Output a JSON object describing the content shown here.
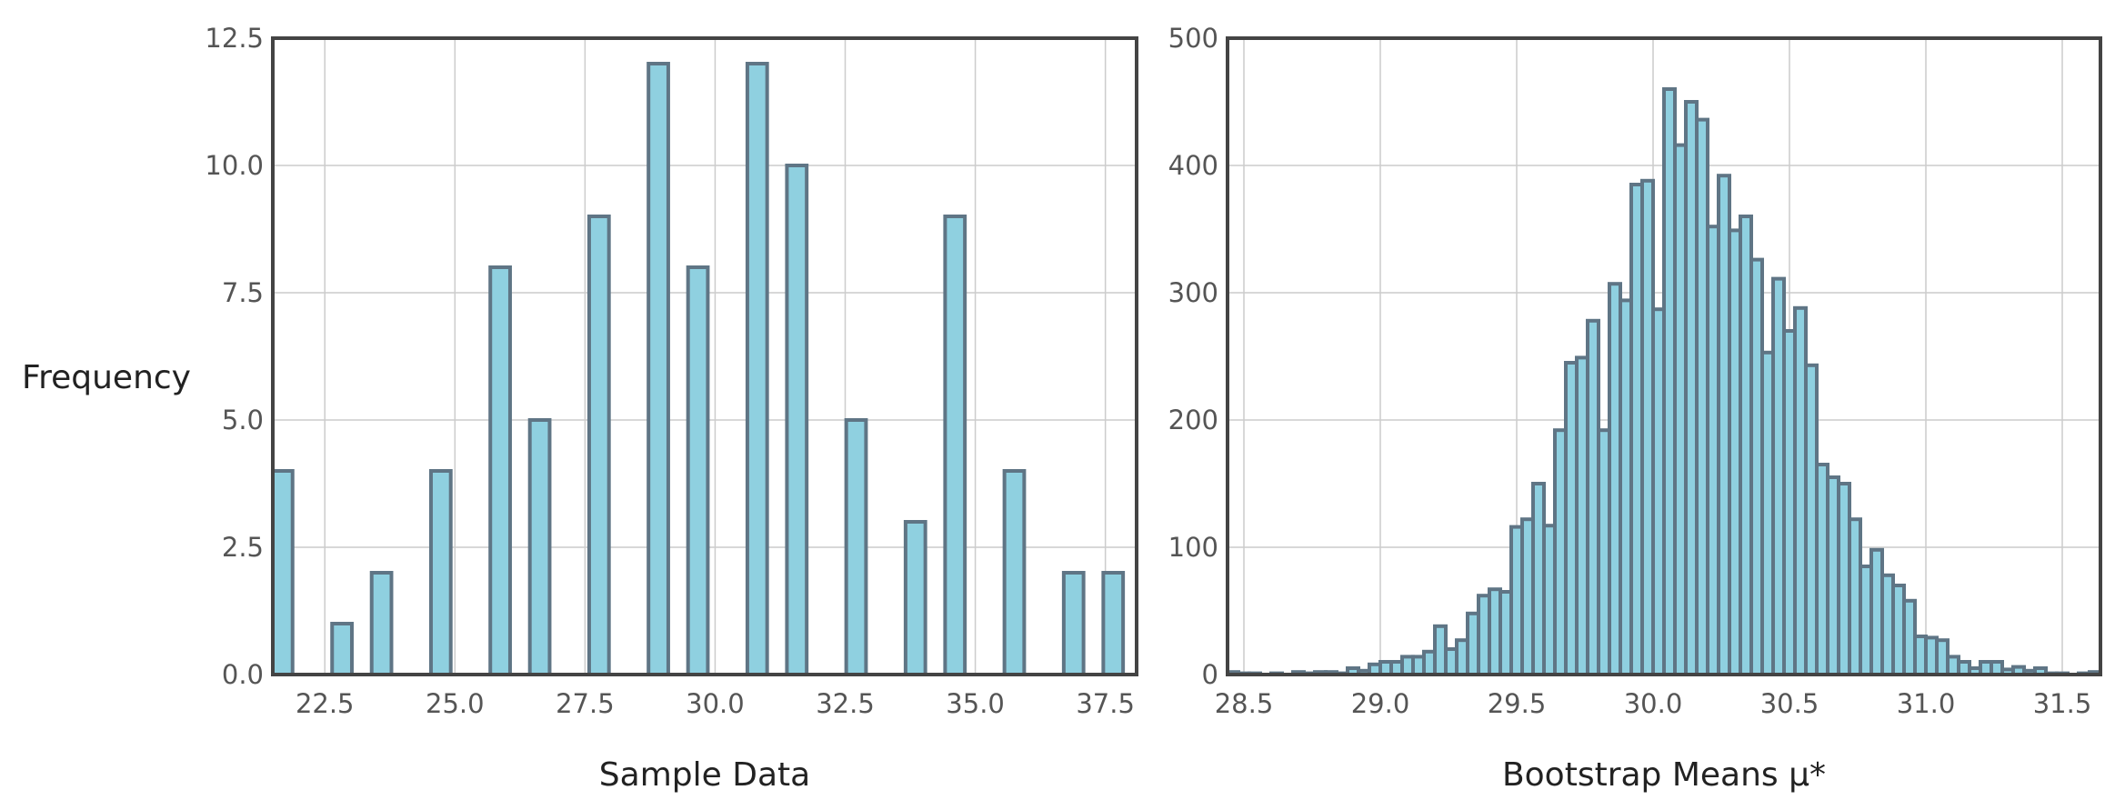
{
  "colors": {
    "bar_fill": "#8fd0e0",
    "bar_edge": "#5f7585",
    "grid": "#cccccc",
    "frame": "#444444"
  },
  "shared_ylabel": "Frequency",
  "chart_data": [
    {
      "type": "bar",
      "xlabel": "Sample Data",
      "ylabel": "Frequency",
      "xlim": [
        21.5,
        38.1
      ],
      "ylim": [
        0,
        12.5
      ],
      "xticks": [
        "22.5",
        "25.0",
        "27.5",
        "30.0",
        "32.5",
        "35.0",
        "37.5"
      ],
      "yticks": [
        "0.0",
        "2.5",
        "5.0",
        "7.5",
        "10.0",
        "12.5"
      ],
      "grid": true,
      "bin_width": 0.38,
      "bins": [
        {
          "x": 21.5,
          "value": 4
        },
        {
          "x": 21.88,
          "value": 0
        },
        {
          "x": 22.26,
          "value": 0
        },
        {
          "x": 22.64,
          "value": 1
        },
        {
          "x": 23.02,
          "value": 0
        },
        {
          "x": 23.4,
          "value": 2
        },
        {
          "x": 23.78,
          "value": 0
        },
        {
          "x": 24.16,
          "value": 0
        },
        {
          "x": 24.54,
          "value": 4
        },
        {
          "x": 24.92,
          "value": 0
        },
        {
          "x": 25.3,
          "value": 0
        },
        {
          "x": 25.68,
          "value": 8
        },
        {
          "x": 26.06,
          "value": 0
        },
        {
          "x": 26.44,
          "value": 5
        },
        {
          "x": 26.82,
          "value": 0
        },
        {
          "x": 27.2,
          "value": 0
        },
        {
          "x": 27.58,
          "value": 9
        },
        {
          "x": 27.96,
          "value": 0
        },
        {
          "x": 28.34,
          "value": 0
        },
        {
          "x": 28.72,
          "value": 12
        },
        {
          "x": 29.1,
          "value": 0
        },
        {
          "x": 29.48,
          "value": 8
        },
        {
          "x": 29.86,
          "value": 0
        },
        {
          "x": 30.24,
          "value": 0
        },
        {
          "x": 30.62,
          "value": 12
        },
        {
          "x": 31.0,
          "value": 0
        },
        {
          "x": 31.38,
          "value": 10
        },
        {
          "x": 31.76,
          "value": 0
        },
        {
          "x": 32.14,
          "value": 0
        },
        {
          "x": 32.52,
          "value": 5
        },
        {
          "x": 32.9,
          "value": 0
        },
        {
          "x": 33.28,
          "value": 0
        },
        {
          "x": 33.66,
          "value": 3
        },
        {
          "x": 34.04,
          "value": 0
        },
        {
          "x": 34.42,
          "value": 9
        },
        {
          "x": 34.8,
          "value": 0
        },
        {
          "x": 35.18,
          "value": 0
        },
        {
          "x": 35.56,
          "value": 4
        },
        {
          "x": 35.94,
          "value": 0
        },
        {
          "x": 36.32,
          "value": 0
        },
        {
          "x": 36.7,
          "value": 2
        },
        {
          "x": 37.08,
          "value": 0
        },
        {
          "x": 37.46,
          "value": 2
        }
      ]
    },
    {
      "type": "bar",
      "xlabel": "Bootstrap Means μ*",
      "ylabel": "",
      "xlim": [
        28.44,
        31.64
      ],
      "ylim": [
        0,
        500
      ],
      "xticks": [
        "28.5",
        "29.0",
        "29.5",
        "30.0",
        "30.5",
        "31.0",
        "31.5"
      ],
      "yticks": [
        "0",
        "100",
        "200",
        "300",
        "400",
        "500"
      ],
      "grid": true,
      "bin_width": 0.04,
      "bins": [
        {
          "x": 28.44,
          "value": 2
        },
        {
          "x": 28.48,
          "value": 1
        },
        {
          "x": 28.52,
          "value": 1
        },
        {
          "x": 28.56,
          "value": 0
        },
        {
          "x": 28.6,
          "value": 1
        },
        {
          "x": 28.64,
          "value": 0
        },
        {
          "x": 28.68,
          "value": 2
        },
        {
          "x": 28.72,
          "value": 1
        },
        {
          "x": 28.76,
          "value": 2
        },
        {
          "x": 28.8,
          "value": 2
        },
        {
          "x": 28.84,
          "value": 1
        },
        {
          "x": 28.88,
          "value": 5
        },
        {
          "x": 28.92,
          "value": 3
        },
        {
          "x": 28.96,
          "value": 8
        },
        {
          "x": 29.0,
          "value": 10
        },
        {
          "x": 29.04,
          "value": 10
        },
        {
          "x": 29.08,
          "value": 14
        },
        {
          "x": 29.12,
          "value": 14
        },
        {
          "x": 29.16,
          "value": 18
        },
        {
          "x": 29.2,
          "value": 38
        },
        {
          "x": 29.24,
          "value": 20
        },
        {
          "x": 29.28,
          "value": 27
        },
        {
          "x": 29.32,
          "value": 48
        },
        {
          "x": 29.36,
          "value": 62
        },
        {
          "x": 29.4,
          "value": 67
        },
        {
          "x": 29.44,
          "value": 65
        },
        {
          "x": 29.48,
          "value": 116
        },
        {
          "x": 29.52,
          "value": 122
        },
        {
          "x": 29.56,
          "value": 150
        },
        {
          "x": 29.6,
          "value": 117
        },
        {
          "x": 29.64,
          "value": 192
        },
        {
          "x": 29.68,
          "value": 245
        },
        {
          "x": 29.72,
          "value": 249
        },
        {
          "x": 29.76,
          "value": 278
        },
        {
          "x": 29.8,
          "value": 192
        },
        {
          "x": 29.84,
          "value": 307
        },
        {
          "x": 29.88,
          "value": 294
        },
        {
          "x": 29.92,
          "value": 385
        },
        {
          "x": 29.96,
          "value": 388
        },
        {
          "x": 30.0,
          "value": 287
        },
        {
          "x": 30.04,
          "value": 460
        },
        {
          "x": 30.08,
          "value": 416
        },
        {
          "x": 30.12,
          "value": 450
        },
        {
          "x": 30.16,
          "value": 436
        },
        {
          "x": 30.2,
          "value": 352
        },
        {
          "x": 30.24,
          "value": 392
        },
        {
          "x": 30.28,
          "value": 349
        },
        {
          "x": 30.32,
          "value": 360
        },
        {
          "x": 30.36,
          "value": 326
        },
        {
          "x": 30.4,
          "value": 253
        },
        {
          "x": 30.44,
          "value": 311
        },
        {
          "x": 30.48,
          "value": 270
        },
        {
          "x": 30.52,
          "value": 288
        },
        {
          "x": 30.56,
          "value": 243
        },
        {
          "x": 30.6,
          "value": 165
        },
        {
          "x": 30.64,
          "value": 155
        },
        {
          "x": 30.68,
          "value": 150
        },
        {
          "x": 30.72,
          "value": 122
        },
        {
          "x": 30.76,
          "value": 85
        },
        {
          "x": 30.8,
          "value": 98
        },
        {
          "x": 30.84,
          "value": 78
        },
        {
          "x": 30.88,
          "value": 70
        },
        {
          "x": 30.92,
          "value": 58
        },
        {
          "x": 30.96,
          "value": 30
        },
        {
          "x": 31.0,
          "value": 29
        },
        {
          "x": 31.04,
          "value": 27
        },
        {
          "x": 31.08,
          "value": 14
        },
        {
          "x": 31.12,
          "value": 10
        },
        {
          "x": 31.16,
          "value": 5
        },
        {
          "x": 31.2,
          "value": 10
        },
        {
          "x": 31.24,
          "value": 10
        },
        {
          "x": 31.28,
          "value": 4
        },
        {
          "x": 31.32,
          "value": 6
        },
        {
          "x": 31.36,
          "value": 3
        },
        {
          "x": 31.4,
          "value": 5
        },
        {
          "x": 31.44,
          "value": 1
        },
        {
          "x": 31.48,
          "value": 1
        },
        {
          "x": 31.52,
          "value": 0
        },
        {
          "x": 31.56,
          "value": 1
        },
        {
          "x": 31.6,
          "value": 2
        }
      ]
    }
  ]
}
